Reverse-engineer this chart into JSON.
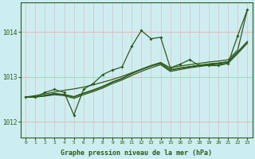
{
  "bg_color": "#cceef0",
  "grid_color_v": "#e8b8b8",
  "grid_color_h": "#e8b8b8",
  "line_color": "#2d5a1b",
  "xlabel": "Graphe pression niveau de la mer (hPa)",
  "xlim": [
    -0.5,
    23.5
  ],
  "ylim": [
    1011.65,
    1014.65
  ],
  "yticks": [
    1012,
    1013,
    1014
  ],
  "xticks": [
    0,
    1,
    2,
    3,
    4,
    5,
    6,
    7,
    8,
    9,
    10,
    11,
    12,
    13,
    14,
    15,
    16,
    17,
    18,
    19,
    20,
    21,
    22,
    23
  ],
  "series_jagged": [
    1012.55,
    1012.55,
    1012.65,
    1012.72,
    1012.65,
    1012.15,
    1012.72,
    1012.85,
    1013.05,
    1013.15,
    1013.22,
    1013.68,
    1014.03,
    1013.85,
    1013.88,
    1013.2,
    1013.28,
    1013.38,
    1013.25,
    1013.25,
    1013.25,
    1013.3,
    1013.92,
    1014.5
  ],
  "series_smooth1": [
    1012.55,
    1012.55,
    1012.58,
    1012.62,
    1012.6,
    1012.55,
    1012.63,
    1012.7,
    1012.78,
    1012.88,
    1012.96,
    1013.07,
    1013.16,
    1013.24,
    1013.3,
    1013.15,
    1013.19,
    1013.22,
    1013.25,
    1013.28,
    1013.3,
    1013.33,
    1013.55,
    1013.78
  ],
  "series_smooth2": [
    1012.55,
    1012.55,
    1012.57,
    1012.6,
    1012.58,
    1012.52,
    1012.6,
    1012.67,
    1012.75,
    1012.85,
    1012.93,
    1013.03,
    1013.12,
    1013.2,
    1013.27,
    1013.12,
    1013.16,
    1013.2,
    1013.23,
    1013.26,
    1013.28,
    1013.3,
    1013.52,
    1013.75
  ],
  "series_smooth3": [
    1012.55,
    1012.55,
    1012.59,
    1012.63,
    1012.61,
    1012.56,
    1012.64,
    1012.71,
    1012.79,
    1012.89,
    1012.97,
    1013.08,
    1013.17,
    1013.25,
    1013.31,
    1013.16,
    1013.2,
    1013.23,
    1013.26,
    1013.29,
    1013.31,
    1013.34,
    1013.56,
    1013.79
  ],
  "series_diagonal": [
    1012.55,
    1012.58,
    1012.62,
    1012.66,
    1012.7,
    1012.73,
    1012.77,
    1012.82,
    1012.88,
    1012.94,
    1013.01,
    1013.09,
    1013.17,
    1013.25,
    1013.32,
    1013.2,
    1013.24,
    1013.27,
    1013.3,
    1013.33,
    1013.35,
    1013.38,
    1013.6,
    1014.5
  ]
}
